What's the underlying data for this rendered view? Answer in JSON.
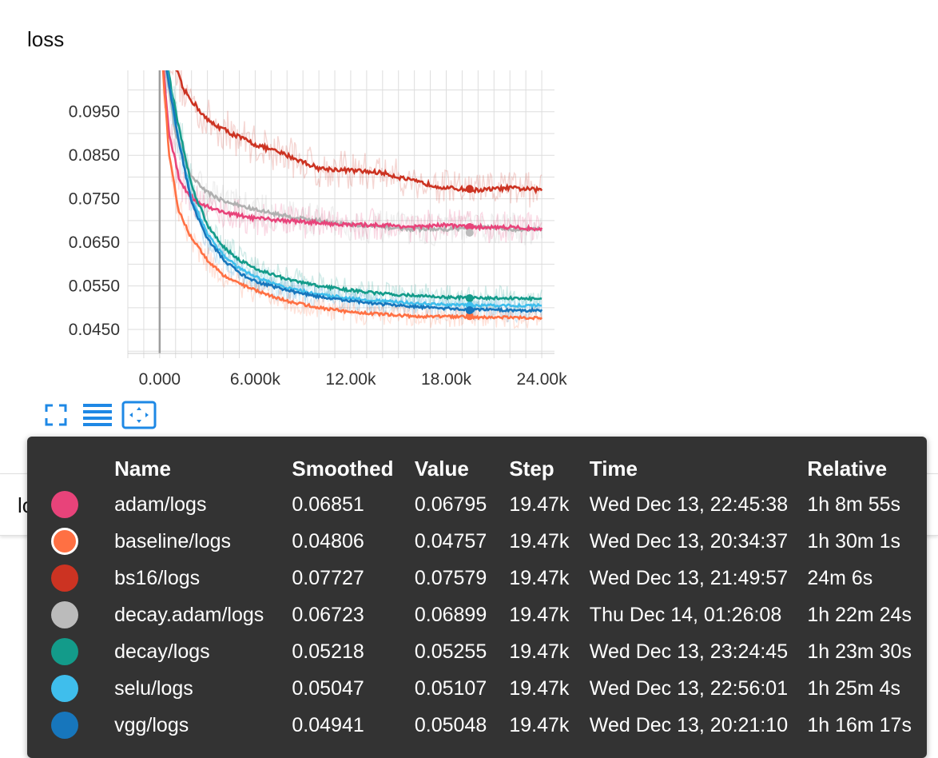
{
  "card_title": "loss",
  "second_card_title": "loss",
  "toolbar": {
    "icons": [
      "fullscreen-icon",
      "toggle-log-scale-icon",
      "fit-domain-icon"
    ]
  },
  "tooltip": {
    "headers": {
      "name": "Name",
      "smoothed": "Smoothed",
      "value": "Value",
      "step": "Step",
      "time": "Time",
      "relative": "Relative"
    },
    "rows": [
      {
        "name": "adam/logs",
        "color": "#e8437a",
        "smoothed": "0.06851",
        "value": "0.06795",
        "step": "19.47k",
        "time": "Wed Dec 13, 22:45:38",
        "relative": "1h 8m 55s"
      },
      {
        "name": "baseline/logs",
        "color": "#ff7043",
        "smoothed": "0.04806",
        "value": "0.04757",
        "step": "19.47k",
        "time": "Wed Dec 13, 20:34:37",
        "relative": "1h 30m 1s"
      },
      {
        "name": "bs16/logs",
        "color": "#cc3322",
        "smoothed": "0.07727",
        "value": "0.07579",
        "step": "19.47k",
        "time": "Wed Dec 13, 21:49:57",
        "relative": "24m 6s"
      },
      {
        "name": "decay.adam/logs",
        "color": "#bbbbbb",
        "smoothed": "0.06723",
        "value": "0.06899",
        "step": "19.47k",
        "time": "Thu Dec 14, 01:26:08",
        "relative": "1h 22m 24s"
      },
      {
        "name": "decay/logs",
        "color": "#139b8a",
        "smoothed": "0.05218",
        "value": "0.05255",
        "step": "19.47k",
        "time": "Wed Dec 13, 23:24:45",
        "relative": "1h 23m 30s"
      },
      {
        "name": "selu/logs",
        "color": "#3fbeec",
        "smoothed": "0.05047",
        "value": "0.05107",
        "step": "19.47k",
        "time": "Wed Dec 13, 22:56:01",
        "relative": "1h 25m 4s"
      },
      {
        "name": "vgg/logs",
        "color": "#1776bc",
        "smoothed": "0.04941",
        "value": "0.05048",
        "step": "19.47k",
        "time": "Wed Dec 13, 20:21:10",
        "relative": "1h 16m 17s"
      }
    ]
  },
  "chart_data": {
    "type": "line",
    "title": "loss",
    "xlabel": "",
    "ylabel": "",
    "xlim": [
      -2000,
      24800
    ],
    "ylim": [
      0.0395,
      0.1045
    ],
    "x_ticks": [
      0,
      6000,
      12000,
      18000,
      24000
    ],
    "x_tick_labels": [
      "0.000",
      "6.000k",
      "12.00k",
      "18.00k",
      "24.00k"
    ],
    "y_ticks": [
      0.045,
      0.055,
      0.065,
      0.075,
      0.085,
      0.095
    ],
    "y_tick_labels": [
      "0.0450",
      "0.0550",
      "0.0650",
      "0.0750",
      "0.0850",
      "0.0950"
    ],
    "grid": true,
    "series": [
      {
        "name": "bs16/logs",
        "color": "#cc3322",
        "x": [
          0,
          1500,
          3000,
          4500,
          6000,
          8000,
          10000,
          12000,
          14000,
          16000,
          18000,
          20000,
          22000,
          24000
        ],
        "y": [
          0.115,
          0.1,
          0.093,
          0.09,
          0.0875,
          0.085,
          0.082,
          0.0815,
          0.081,
          0.079,
          0.0775,
          0.077,
          0.0775,
          0.077
        ]
      },
      {
        "name": "decay.adam/logs",
        "color": "#b0b0b0",
        "x": [
          0,
          1000,
          2000,
          3000,
          4000,
          5000,
          6000,
          8000,
          10000,
          12000,
          14000,
          16000,
          18000,
          20000,
          22000,
          24000
        ],
        "y": [
          0.115,
          0.09,
          0.08,
          0.0765,
          0.0745,
          0.0735,
          0.0725,
          0.071,
          0.07,
          0.069,
          0.0685,
          0.068,
          0.068,
          0.0685,
          0.068,
          0.068
        ]
      },
      {
        "name": "adam/logs",
        "color": "#e8437a",
        "x": [
          0,
          600,
          1200,
          1800,
          2500,
          3500,
          4500,
          6000,
          8000,
          10000,
          12000,
          14000,
          16000,
          18000,
          20000,
          22000,
          24000
        ],
        "y": [
          0.115,
          0.09,
          0.08,
          0.076,
          0.074,
          0.0725,
          0.0715,
          0.0705,
          0.07,
          0.0695,
          0.069,
          0.069,
          0.0685,
          0.069,
          0.0685,
          0.0685,
          0.068
        ]
      },
      {
        "name": "decay/logs",
        "color": "#139b8a",
        "x": [
          0,
          1000,
          2000,
          3000,
          4000,
          5000,
          6000,
          8000,
          10000,
          12000,
          14000,
          16000,
          18000,
          20000,
          22000,
          24000
        ],
        "y": [
          0.115,
          0.095,
          0.078,
          0.069,
          0.064,
          0.061,
          0.059,
          0.0565,
          0.055,
          0.054,
          0.0532,
          0.0528,
          0.0524,
          0.0522,
          0.0522,
          0.052
        ]
      },
      {
        "name": "selu/logs",
        "color": "#3fbeec",
        "x": [
          0,
          1000,
          2000,
          3000,
          4000,
          5000,
          6000,
          8000,
          10000,
          12000,
          14000,
          16000,
          18000,
          20000,
          22000,
          24000
        ],
        "y": [
          0.115,
          0.092,
          0.075,
          0.067,
          0.062,
          0.059,
          0.057,
          0.0545,
          0.053,
          0.0522,
          0.0515,
          0.051,
          0.0507,
          0.0505,
          0.0505,
          0.0505
        ]
      },
      {
        "name": "vgg/logs",
        "color": "#1776bc",
        "x": [
          0,
          1000,
          2000,
          3000,
          4000,
          5000,
          6000,
          8000,
          10000,
          12000,
          14000,
          16000,
          18000,
          20000,
          22000,
          24000
        ],
        "y": [
          0.115,
          0.092,
          0.074,
          0.066,
          0.061,
          0.058,
          0.056,
          0.054,
          0.0525,
          0.0515,
          0.0508,
          0.0502,
          0.0498,
          0.0496,
          0.0494,
          0.0494
        ]
      },
      {
        "name": "baseline/logs",
        "color": "#ff7043",
        "x": [
          0,
          600,
          1200,
          2000,
          3000,
          4000,
          5000,
          6000,
          8000,
          10000,
          12000,
          14000,
          16000,
          18000,
          20000,
          22000,
          24000
        ],
        "y": [
          0.115,
          0.085,
          0.072,
          0.066,
          0.061,
          0.0575,
          0.0555,
          0.054,
          0.0515,
          0.05,
          0.049,
          0.0485,
          0.048,
          0.048,
          0.0478,
          0.0478,
          0.0476
        ]
      }
    ]
  }
}
